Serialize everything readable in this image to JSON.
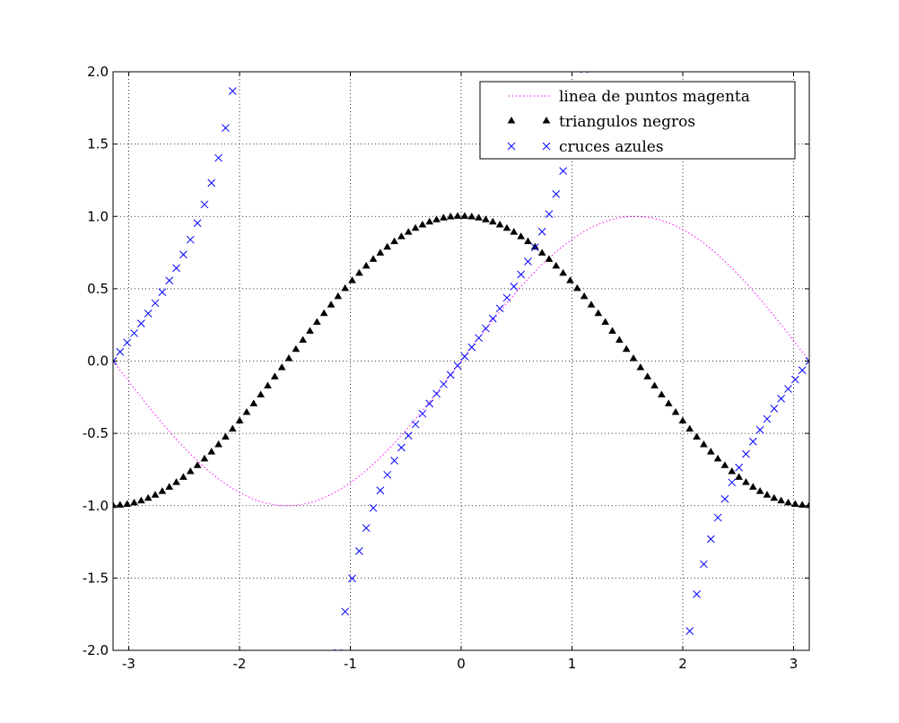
{
  "chart_data": {
    "type": "line",
    "xlim": [
      -3.14159,
      3.14159
    ],
    "ylim": [
      -2.0,
      2.0
    ],
    "grid": true,
    "grid_style": "dotted",
    "x_ticks": [
      -3,
      -2,
      -1,
      0,
      1,
      2,
      3
    ],
    "x_tick_labels": [
      "-3",
      "-2",
      "-1",
      "0",
      "1",
      "2",
      "3"
    ],
    "y_ticks": [
      2.0,
      1.5,
      1.0,
      0.5,
      0.0,
      -0.5,
      -1.0,
      -1.5,
      -2.0
    ],
    "y_tick_labels": [
      "2.0",
      "1.5",
      "1.0",
      "0.5",
      "0.0",
      "-0.5",
      "-1.0",
      "-1.5",
      "-2.0"
    ],
    "legend_position": "top-right",
    "series": [
      {
        "name": "linea de puntos magenta",
        "function": "sin(x)",
        "style": "dotted-line",
        "color": "#ff00ff",
        "n_points": 200
      },
      {
        "name": "triangulos negros",
        "function": "cos(x)",
        "style": "triangle-markers",
        "color": "#000000",
        "n_points": 100
      },
      {
        "name": "cruces azules",
        "function": "tan(x)",
        "style": "x-markers",
        "color": "#0000ff",
        "n_points": 100
      }
    ]
  }
}
